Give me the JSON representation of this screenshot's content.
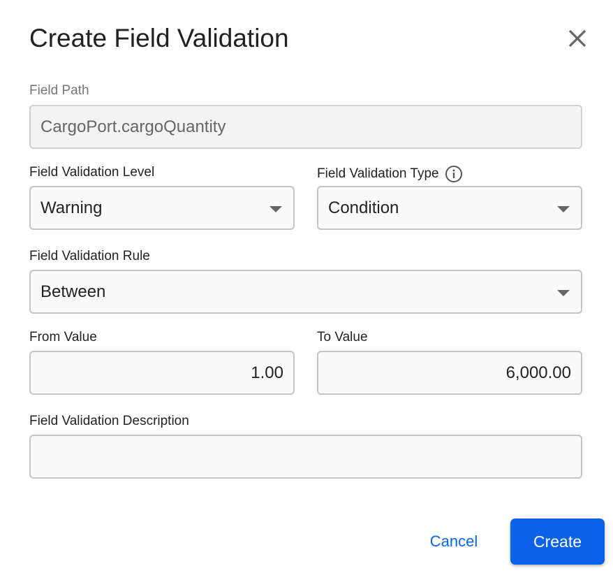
{
  "dialog": {
    "title": "Create Field Validation",
    "close_icon": "close-icon"
  },
  "fields": {
    "path": {
      "label": "Field Path",
      "value": "CargoPort.cargoQuantity"
    },
    "level": {
      "label": "Field Validation Level",
      "value": "Warning"
    },
    "type": {
      "label": "Field Validation Type",
      "value": "Condition",
      "info_icon": "info-icon"
    },
    "rule": {
      "label": "Field Validation Rule",
      "value": "Between"
    },
    "from": {
      "label": "From Value",
      "value": "1.00"
    },
    "to": {
      "label": "To Value",
      "value": "6,000.00"
    },
    "description": {
      "label": "Field Validation Description",
      "value": ""
    }
  },
  "actions": {
    "cancel": "Cancel",
    "create": "Create"
  },
  "colors": {
    "primary": "#0a62e8"
  }
}
